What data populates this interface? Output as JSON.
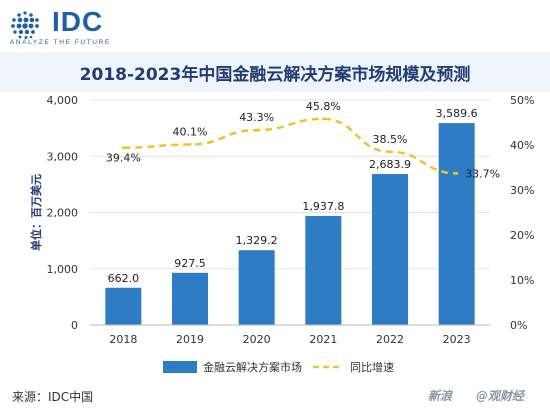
{
  "header": {
    "logo_text": "IDC",
    "logo_tagline": "ANALYZE THE FUTURE"
  },
  "chart_data": {
    "type": "bar",
    "title": "2018-2023年中国金融云解决方案市场规模及预测",
    "ylabel": "单位：百万美元",
    "categories": [
      "2018",
      "2019",
      "2020",
      "2021",
      "2022",
      "2023"
    ],
    "ylim": [
      0,
      4000
    ],
    "y_ticks": [
      "0",
      "1,000",
      "2,000",
      "3,000",
      "4,000"
    ],
    "y2lim": [
      0,
      50
    ],
    "y2_ticks": [
      "0%",
      "10%",
      "20%",
      "30%",
      "40%",
      "50%"
    ],
    "grid": true,
    "legend_position": "bottom",
    "series": [
      {
        "name": "金融云解决方案市场",
        "type": "bar",
        "axis": "left",
        "color": "#2e7dc4",
        "values": [
          662.0,
          927.5,
          1329.2,
          1937.8,
          2683.9,
          3589.6
        ],
        "labels": [
          "662.0",
          "927.5",
          "1,329.2",
          "1,937.8",
          "2,683.9",
          "3,589.6"
        ]
      },
      {
        "name": "同比增速",
        "type": "line",
        "style": "dashed",
        "axis": "right",
        "color": "#f2c12e",
        "values": [
          39.4,
          40.1,
          43.3,
          45.8,
          38.5,
          33.7
        ],
        "labels": [
          "39.4%",
          "40.1%",
          "43.3%",
          "45.8%",
          "38.5%",
          "33.7%"
        ]
      }
    ]
  },
  "footer": {
    "source": "来源：IDC中国",
    "watermark_1": "新浪",
    "watermark_2": "@观财经"
  }
}
